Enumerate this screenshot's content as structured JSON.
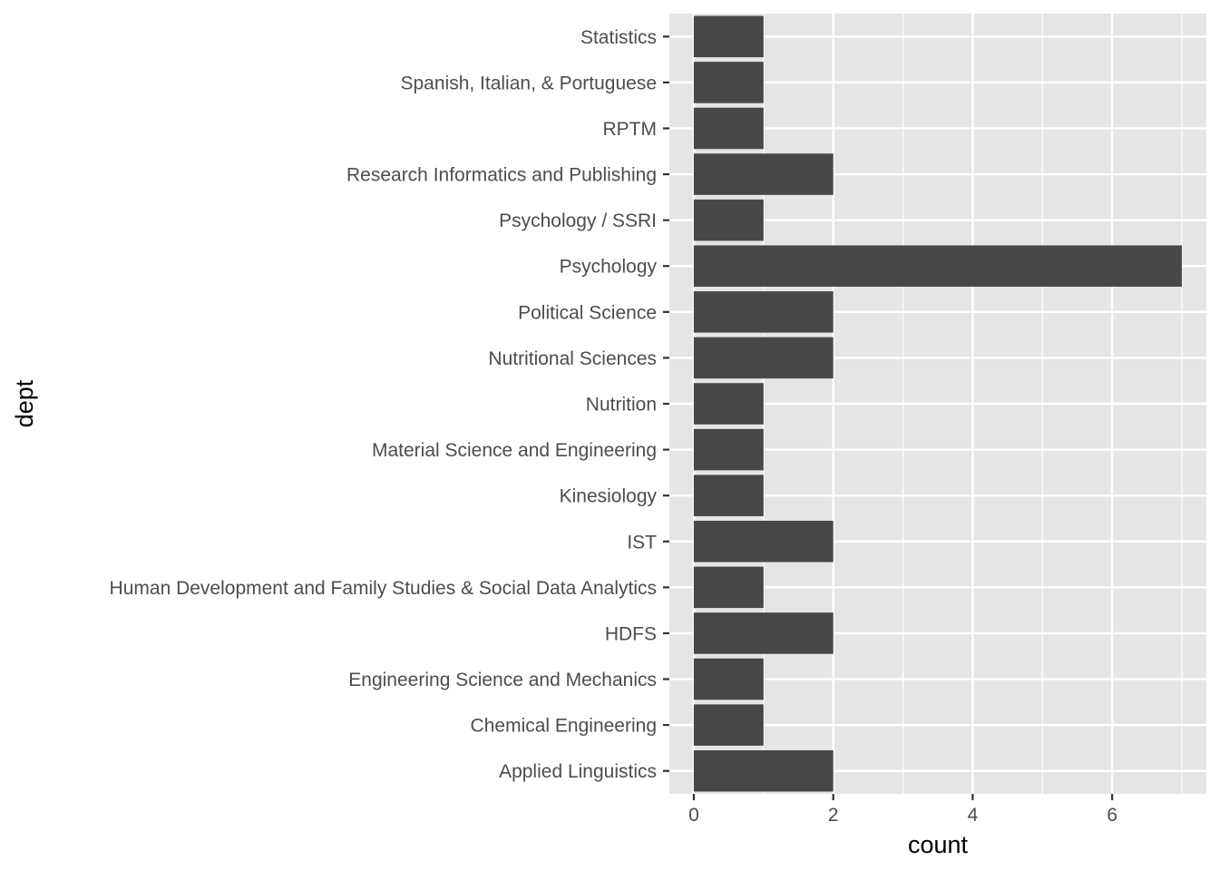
{
  "chart_data": {
    "type": "bar",
    "orientation": "horizontal",
    "xlabel": "count",
    "ylabel": "dept",
    "categories": [
      "Applied Linguistics",
      "Chemical Engineering",
      "Engineering Science and Mechanics",
      "HDFS",
      "Human Development and Family Studies & Social Data Analytics",
      "IST",
      "Kinesiology",
      "Material Science and Engineering",
      "Nutrition",
      "Nutritional Sciences",
      "Political Science",
      "Psychology",
      "Psychology / SSRI",
      "Research Informatics and Publishing",
      "RPTM",
      "Spanish, Italian, & Portuguese",
      "Statistics"
    ],
    "values": [
      2,
      1,
      1,
      2,
      1,
      2,
      1,
      1,
      1,
      2,
      2,
      7,
      1,
      2,
      1,
      1,
      1
    ],
    "xticks": [
      0,
      2,
      4,
      6
    ],
    "xlim": [
      -0.35,
      7.35
    ],
    "grid": true,
    "colors": {
      "bar": "#474747",
      "panel": "#e5e5e5",
      "grid": "#ffffff",
      "tick": "#333333",
      "tick_label": "#4d4d4d"
    }
  }
}
